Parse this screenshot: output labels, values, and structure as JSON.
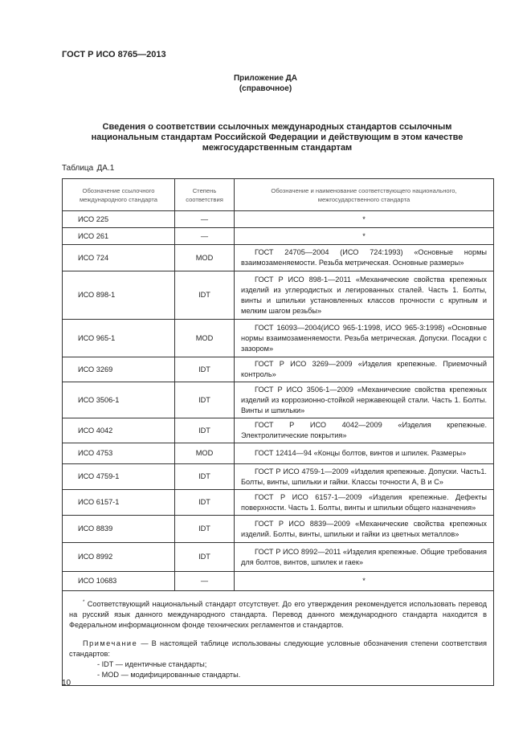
{
  "header": {
    "doc_code": "ГОСТ Р ИСО 8765—2013"
  },
  "appendix": {
    "title": "Приложение ДА",
    "subtitle": "(справочное)"
  },
  "title": "Сведения о соответствии ссылочных международных стандартов ссылочным национальным стандартам Российской Федерации и действующим в этом качестве межгосударственным стандартам",
  "table": {
    "label_word": "Таблица",
    "label_num": "ДА.1",
    "headers": [
      "Обозначение ссылочного международного стандарта",
      "Степень соответствия",
      "Обозначение и наименование соответствующего национального, межгосударственного стандарта"
    ],
    "rows": [
      {
        "iso": "ИСО 225",
        "degree": "—",
        "national": "*",
        "h": 21
      },
      {
        "iso": "ИСО 261",
        "degree": "—",
        "national": "*",
        "h": 21
      },
      {
        "iso": "ИСО 724",
        "degree": "MOD",
        "national": "ГОСТ 24705—2004 (ИСО 724:1993) «Основные нормы взаимозаменяемости. Резьба метрическая. Основные размеры»",
        "h": 33
      },
      {
        "iso": "ИСО 898-1",
        "degree": "IDT",
        "national": "ГОСТ Р ИСО 898-1—2011 «Механические свойства крепежных изделий из углеродистых и легированных сталей. Часть 1. Болты, винты и шпильки установленных классов прочности с крупным и мелким шагом резьбы»",
        "h": 60
      },
      {
        "iso": "ИСО 965-1",
        "degree": "MOD",
        "national": "ГОСТ 16093—2004(ИСО 965-1:1998, ИСО 965-3:1998) «Основные нормы взаимозаменяемости. Резьба метрическая. Допуски. Посадки с зазором»",
        "h": 47
      },
      {
        "iso": "ИСО 3269",
        "degree": "IDT",
        "national": "ГОСТ Р ИСО 3269—2009 «Изделия крепежные. Приемочный контроль»",
        "h": 31
      },
      {
        "iso": "ИСО 3506-1",
        "degree": "IDT",
        "national": "ГОСТ Р ИСО 3506-1—2009 «Механические свойства крепежных изделий из коррозионно-стойкой нержавеющей стали. Часть 1. Болты. Винты и шпильки»",
        "h": 45
      },
      {
        "iso": "ИСО 4042",
        "degree": "IDT",
        "national": "ГОСТ Р ИСО 4042—2009 «Изделия крепежные. Электролитические покрытия»",
        "h": 30
      },
      {
        "iso": "ИСО 4753",
        "degree": "MOD",
        "national": "ГОСТ 12414—94 «Концы болтов, винтов и шпилек. Размеры»",
        "h": 26
      },
      {
        "iso": "ИСО 4759-1",
        "degree": "IDT",
        "national": "ГОСТ Р ИСО 4759-1—2009 «Изделия крепежные. Допуски. Часть1. Болты, винты, шпильки и гайки. Классы точности А, В и С»",
        "h": 32
      },
      {
        "iso": "ИСО 6157-1",
        "degree": "IDT",
        "national": "ГОСТ Р ИСО 6157-1—2009 «Изделия крепежные. Дефекты поверхности. Часть 1. Болты, винты и шпильки общего назначения»",
        "h": 32
      },
      {
        "iso": "ИСО 8839",
        "degree": "IDT",
        "national": "ГОСТ Р ИСО 8839—2009 «Механические свойства крепежных изделий. Болты, винты, шпильки и гайки из цветных металлов»",
        "h": 34
      },
      {
        "iso": "ИСО 8992",
        "degree": "IDT",
        "national": "ГОСТ Р ИСО 8992—2011 «Изделия крепежные. Общие требования для болтов, винтов, шпилек и гаек»",
        "h": 36
      },
      {
        "iso": "ИСО 10683",
        "degree": "—",
        "national": "*",
        "h": 24
      }
    ],
    "footnote_mark": "*",
    "footnote": "Соответствующий национальный стандарт отсутствует. До его утверждения рекомендуется использовать перевод на русский язык данного международного стандарта. Перевод данного международного стандарта находится в Федеральном информационном фонде технических регламентов и стандартов.",
    "note_label": "Примечание",
    "note_text": " — В настоящей таблице использованы следующие условные обозначения степени соответствия стандартов:",
    "note_items": [
      "- IDT — идентичные стандарты;",
      "- MOD — модифицированные стандарты."
    ]
  },
  "page_number": "10"
}
